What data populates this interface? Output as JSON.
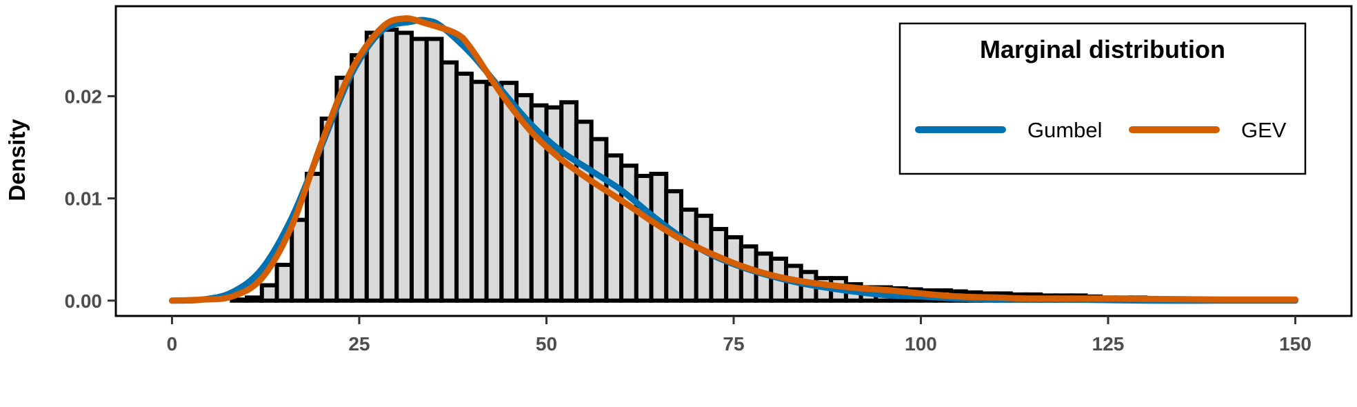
{
  "chart_data": {
    "type": "histogram+line",
    "ylabel": "Density",
    "xlabel": "",
    "xlim": [
      -7.5,
      157.5
    ],
    "ylim": [
      -0.0015,
      0.0288
    ],
    "x_ticks": [
      0,
      25,
      50,
      75,
      100,
      125,
      150
    ],
    "x_tick_labels": [
      "0",
      "25",
      "50",
      "75",
      "100",
      "125",
      "150"
    ],
    "y_ticks": [
      0.0,
      0.01,
      0.02
    ],
    "y_tick_labels": [
      "0.00",
      "0.01",
      "0.02"
    ],
    "histogram": {
      "bin_start": 0,
      "bin_width": 2,
      "fill": "#d9d9d9",
      "stroke": "#000000",
      "densities": [
        0.0,
        0.0,
        0.0,
        0.0,
        0.0001,
        0.0003,
        0.0015,
        0.0035,
        0.0079,
        0.0124,
        0.0178,
        0.0218,
        0.024,
        0.0262,
        0.0265,
        0.0262,
        0.0256,
        0.0256,
        0.0233,
        0.0222,
        0.0214,
        0.0212,
        0.0213,
        0.0201,
        0.0191,
        0.0189,
        0.0194,
        0.0175,
        0.0158,
        0.0142,
        0.0132,
        0.0122,
        0.0124,
        0.0107,
        0.0089,
        0.0083,
        0.007,
        0.0062,
        0.0053,
        0.0046,
        0.0041,
        0.0034,
        0.0028,
        0.0022,
        0.0022,
        0.0016,
        0.0013,
        0.0013,
        0.0012,
        0.0011,
        0.001,
        0.001,
        0.0009,
        0.0008,
        0.0007,
        0.0007,
        0.0006,
        0.0006,
        0.0005,
        0.0005,
        0.0005,
        0.0004,
        0.0003,
        0.0003,
        0.0003,
        0.0002,
        0.0002,
        0.0002,
        0.0002,
        0.0001,
        0.0001,
        0.0001,
        0.0001,
        0.0001,
        0.0001
      ]
    },
    "legend": {
      "title": "Marginal distribution",
      "placement": "top-right"
    },
    "series": [
      {
        "name": "Gumbel",
        "color": "#0072b2",
        "points": [
          [
            0,
            0.0
          ],
          [
            4,
            0.0001
          ],
          [
            8,
            0.0008
          ],
          [
            12,
            0.0031
          ],
          [
            16,
            0.0081
          ],
          [
            20,
            0.0152
          ],
          [
            24,
            0.0222
          ],
          [
            28,
            0.0264
          ],
          [
            32,
            0.0273
          ],
          [
            34,
            0.0274
          ],
          [
            36,
            0.0268
          ],
          [
            40,
            0.0241
          ],
          [
            44,
            0.0206
          ],
          [
            48,
            0.0172
          ],
          [
            52,
            0.0146
          ],
          [
            56,
            0.0127
          ],
          [
            60,
            0.0108
          ],
          [
            64,
            0.0084
          ],
          [
            68,
            0.0062
          ],
          [
            72,
            0.0045
          ],
          [
            76,
            0.0033
          ],
          [
            80,
            0.0024
          ],
          [
            84,
            0.0017
          ],
          [
            88,
            0.0012
          ],
          [
            92,
            0.0008
          ],
          [
            96,
            0.0005
          ],
          [
            100,
            0.0004
          ],
          [
            105,
            0.0002
          ],
          [
            110,
            0.0001
          ],
          [
            120,
            0.0001
          ],
          [
            130,
            0.0
          ],
          [
            140,
            0.0
          ],
          [
            150,
            0.0
          ]
        ]
      },
      {
        "name": "GEV",
        "color": "#d55e00",
        "points": [
          [
            0,
            0.0
          ],
          [
            4,
            0.0001
          ],
          [
            8,
            0.0004
          ],
          [
            12,
            0.0022
          ],
          [
            16,
            0.0073
          ],
          [
            20,
            0.0155
          ],
          [
            24,
            0.0226
          ],
          [
            28,
            0.0267
          ],
          [
            31,
            0.0276
          ],
          [
            34,
            0.0271
          ],
          [
            38,
            0.0261
          ],
          [
            40,
            0.0246
          ],
          [
            44,
            0.0202
          ],
          [
            48,
            0.0165
          ],
          [
            52,
            0.0138
          ],
          [
            56,
            0.0117
          ],
          [
            60,
            0.0098
          ],
          [
            64,
            0.0078
          ],
          [
            68,
            0.006
          ],
          [
            72,
            0.0046
          ],
          [
            76,
            0.0034
          ],
          [
            80,
            0.0025
          ],
          [
            84,
            0.0019
          ],
          [
            88,
            0.0015
          ],
          [
            92,
            0.0012
          ],
          [
            96,
            0.001
          ],
          [
            100,
            0.0007
          ],
          [
            105,
            0.0004
          ],
          [
            110,
            0.0003
          ],
          [
            115,
            0.0002
          ],
          [
            125,
            0.0002
          ],
          [
            140,
            0.0001
          ],
          [
            150,
            0.0001
          ]
        ]
      }
    ]
  }
}
